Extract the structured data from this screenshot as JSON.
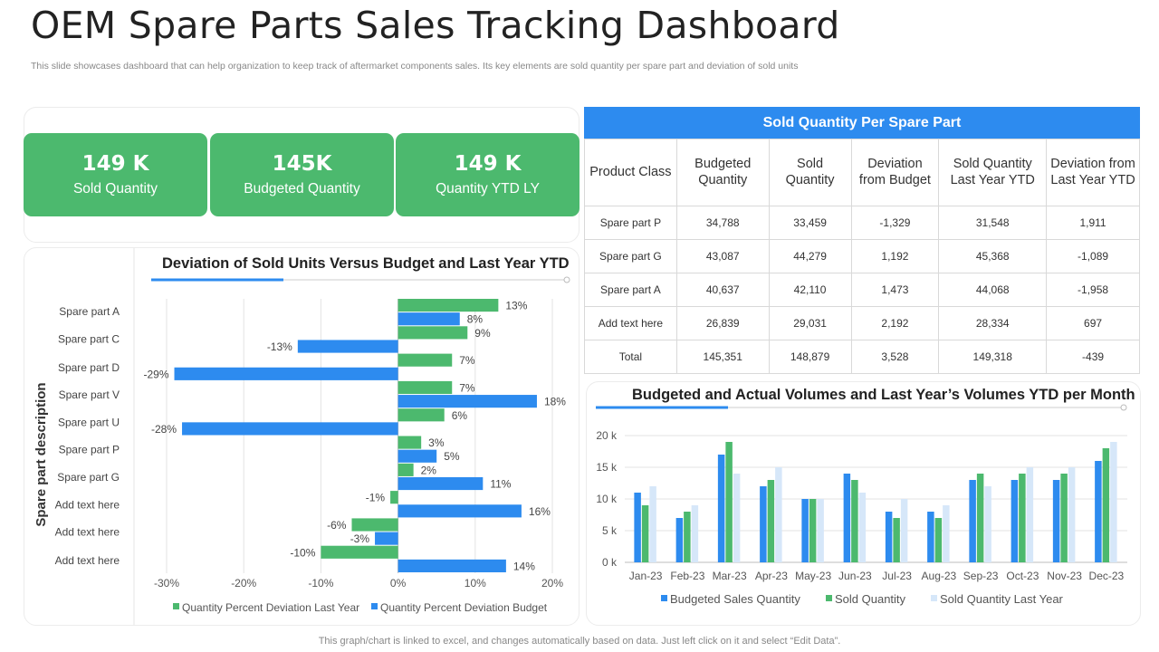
{
  "header": {
    "title": "OEM Spare Parts Sales Tracking Dashboard",
    "subtitle": "This slide showcases dashboard that can help organization to keep track of aftermarket components sales. Its key elements are sold quantity per spare part and deviation of sold units"
  },
  "kpis": [
    {
      "value": "149 K",
      "label": "Sold Quantity"
    },
    {
      "value": "145K",
      "label": "Budgeted Quantity"
    },
    {
      "value": "149 K",
      "label": "Quantity  YTD  LY"
    }
  ],
  "table": {
    "title": "Sold Quantity Per Spare Part",
    "headers": [
      "Product Class",
      "Budgeted Quantity",
      "Sold Quantity",
      "Deviation from Budget",
      "Sold Quantity Last Year YTD",
      "Deviation from Last Year YTD"
    ],
    "rows": [
      [
        "Spare part P",
        "34,788",
        "33,459",
        "-1,329",
        "31,548",
        "1,911"
      ],
      [
        "Spare part G",
        "43,087",
        "44,279",
        "1,192",
        "45,368",
        "-1,089"
      ],
      [
        "Spare part A",
        "40,637",
        "42,110",
        "1,473",
        "44,068",
        "-1,958"
      ],
      [
        "Add text here",
        "26,839",
        "29,031",
        "2,192",
        "28,334",
        "697"
      ],
      [
        "Total",
        "145,351",
        "148,879",
        "3,528",
        "149,318",
        "-439"
      ]
    ]
  },
  "colors": {
    "green": "#4cb96e",
    "blue": "#2d8bef",
    "light_blue": "#d6e7f9",
    "grid": "#e3e3e3"
  },
  "footer": {
    "text": "This graph/chart is linked to excel,  and changes automatically based on data. Just left click on it and select “Edit Data”."
  },
  "chart_data": [
    {
      "type": "bar",
      "orientation": "horizontal",
      "title": "Deviation of Sold Units Versus Budget and Last Year YTD",
      "ylabel": "Spare part description",
      "xlabel": "",
      "categories": [
        "Spare part A",
        "Spare part C",
        "Spare part D",
        "Spare part V",
        "Spare part U",
        "Spare part P",
        "Spare part G",
        "Add text here",
        "Add text here",
        "Add text here"
      ],
      "series": [
        {
          "name": "Quantity Percent Deviation Last Year",
          "color": "#4cb96e",
          "values": [
            13,
            9,
            7,
            7,
            6,
            3,
            2,
            -1,
            -6,
            -10
          ]
        },
        {
          "name": "Quantity Percent Deviation Budget",
          "color": "#2d8bef",
          "values": [
            8,
            -13,
            -29,
            18,
            -28,
            5,
            11,
            16,
            -3,
            14
          ]
        }
      ],
      "xlim": [
        -30,
        20
      ],
      "xticks": [
        -30,
        -20,
        -10,
        0,
        10,
        20
      ],
      "unit": "%",
      "legend": "bottom"
    },
    {
      "type": "bar",
      "title": "Budgeted and Actual Volumes and Last Year’s Volumes YTD per Month",
      "categories": [
        "Jan-23",
        "Feb-23",
        "Mar-23",
        "Apr-23",
        "May-23",
        "Jun-23",
        "Jul-23",
        "Aug-23",
        "Sep-23",
        "Oct-23",
        "Nov-23",
        "Dec-23"
      ],
      "series": [
        {
          "name": "Budgeted Sales Quantity",
          "color": "#2d8bef",
          "values": [
            11,
            7,
            17,
            12,
            10,
            14,
            8,
            8,
            13,
            13,
            13,
            16
          ]
        },
        {
          "name": "Sold Quantity",
          "color": "#4cb96e",
          "values": [
            9,
            8,
            19,
            13,
            10,
            13,
            7,
            7,
            14,
            14,
            14,
            18
          ]
        },
        {
          "name": "Sold Quantity Last Year",
          "color": "#d6e7f9",
          "values": [
            12,
            9,
            14,
            15,
            10,
            11,
            10,
            9,
            12,
            15,
            15,
            19
          ]
        }
      ],
      "ylim": [
        0,
        20
      ],
      "yticks": [
        0,
        5,
        10,
        15,
        20
      ],
      "yticklabels": [
        "0 k",
        "5 k",
        "10 k",
        "15 k",
        "20 k"
      ],
      "legend": "bottom"
    }
  ]
}
